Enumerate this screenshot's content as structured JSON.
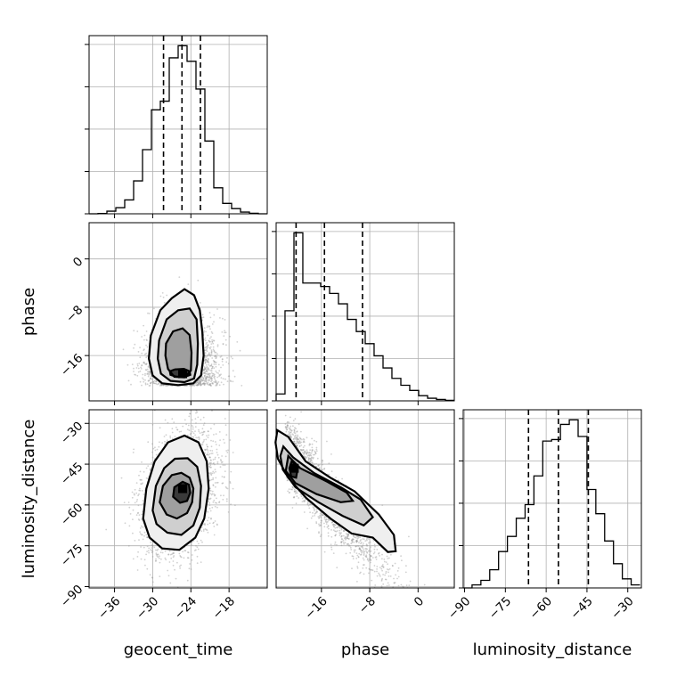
{
  "chart_data": {
    "type": "corner",
    "parameters": [
      "geocent_time",
      "phase",
      "luminosity_distance"
    ],
    "ranges": {
      "geocent_time": [
        -40,
        -12
      ],
      "phase": [
        -23.5,
        6
      ],
      "luminosity_distance": [
        -90.5,
        -25
      ]
    },
    "ticks": {
      "geocent_time": [
        "-36",
        "-30",
        "-24",
        "-18"
      ],
      "phase": [
        "-16",
        "-8",
        "0"
      ],
      "luminosity_distance": [
        "-90",
        "-75",
        "-60",
        "-45",
        "-30"
      ]
    },
    "tick_values": {
      "geocent_time": [
        -36,
        -30,
        -24,
        -18
      ],
      "phase": [
        -16,
        -8,
        0
      ],
      "luminosity_distance": [
        -90,
        -75,
        -60,
        -45,
        -30
      ]
    },
    "axis_labels": {
      "x": [
        "geocent_time",
        "phase",
        "luminosity_distance"
      ],
      "y": [
        "phase",
        "luminosity_distance"
      ]
    },
    "histograms": {
      "geocent_time": {
        "edges": [
          -40,
          -38.6,
          -37.2,
          -35.8,
          -34.4,
          -33,
          -31.6,
          -30.2,
          -28.8,
          -27.4,
          -26,
          -24.6,
          -23.2,
          -21.8,
          -20.4,
          -19,
          -17.6,
          -16.2,
          -14.8,
          -13.4,
          -12
        ],
        "counts": [
          0,
          0.2,
          1.5,
          3.5,
          8,
          19,
          37,
          60,
          65,
          90,
          97,
          88,
          72,
          42,
          15,
          6,
          3,
          1,
          0.3,
          0
        ],
        "quantiles": [
          -28.3,
          -25.4,
          -22.5
        ]
      },
      "phase": {
        "edges": [
          -23.5,
          -22.03,
          -20.55,
          -19.08,
          -17.6,
          -16.13,
          -14.65,
          -13.18,
          -11.7,
          -10.23,
          -8.75,
          -7.28,
          -5.8,
          -4.33,
          -2.85,
          -1.38,
          0.1,
          1.58,
          3.05,
          4.53,
          6
        ],
        "counts": [
          4,
          52,
          97,
          68,
          68,
          66,
          62,
          56,
          47,
          40,
          33,
          26,
          19,
          13,
          9,
          6,
          3,
          1.5,
          0.8,
          0.3
        ],
        "quantiles": [
          -20.2,
          -15.5,
          -9.2
        ]
      },
      "luminosity_distance": {
        "edges": [
          -90.5,
          -87.25,
          -84,
          -80.75,
          -77.5,
          -74.25,
          -71,
          -67.75,
          -64.5,
          -61.25,
          -58,
          -54.75,
          -51.5,
          -48.25,
          -45,
          -41.75,
          -38.5,
          -35.25,
          -32,
          -28.75,
          -25.5
        ],
        "counts": [
          0,
          2,
          5,
          12,
          24,
          34,
          46,
          55,
          74,
          97,
          98,
          108,
          111,
          100,
          65,
          49,
          31,
          16,
          6,
          2
        ],
        "quantiles": [
          -66.5,
          -55.5,
          -44.5
        ]
      }
    },
    "contours_2d": {
      "phase_vs_geocent_time": [
        [
          [
            -30.3,
            -12.7
          ],
          [
            -28.8,
            -8.5
          ],
          [
            -27,
            -6.5
          ],
          [
            -25,
            -5
          ],
          [
            -23.5,
            -6
          ],
          [
            -22.6,
            -8.5
          ],
          [
            -22.2,
            -12
          ],
          [
            -22,
            -16
          ],
          [
            -22.4,
            -19.3
          ],
          [
            -23.6,
            -20.6
          ],
          [
            -26,
            -20.9
          ],
          [
            -28.5,
            -20.6
          ],
          [
            -30,
            -19.3
          ],
          [
            -30.6,
            -16.5
          ]
        ],
        [
          [
            -29,
            -13.5
          ],
          [
            -27.8,
            -10
          ],
          [
            -26,
            -8.5
          ],
          [
            -24.2,
            -8.2
          ],
          [
            -23.1,
            -10
          ],
          [
            -22.9,
            -14
          ],
          [
            -23,
            -17.5
          ],
          [
            -23.5,
            -19.8
          ],
          [
            -25,
            -20.4
          ],
          [
            -27.2,
            -20.2
          ],
          [
            -28.7,
            -19
          ],
          [
            -29.2,
            -16.5
          ]
        ],
        [
          [
            -27.9,
            -14
          ],
          [
            -26.8,
            -12
          ],
          [
            -25.3,
            -11.5
          ],
          [
            -24.2,
            -12.6
          ],
          [
            -23.9,
            -15.5
          ],
          [
            -24,
            -18.5
          ],
          [
            -25,
            -19.6
          ],
          [
            -26.6,
            -19.5
          ],
          [
            -27.6,
            -18.2
          ],
          [
            -28,
            -16
          ]
        ],
        [
          [
            -27.3,
            -18.6
          ],
          [
            -26.5,
            -18.3
          ],
          [
            -25.1,
            -18.2
          ],
          [
            -24.2,
            -18.6
          ],
          [
            -24.1,
            -19.2
          ],
          [
            -24.9,
            -19.5
          ],
          [
            -26.3,
            -19.5
          ],
          [
            -27.2,
            -19.2
          ]
        ]
      ],
      "luminosity_distance_vs_geocent_time": [
        [
          [
            -31.5,
            -65
          ],
          [
            -31,
            -54
          ],
          [
            -29.7,
            -44
          ],
          [
            -27.6,
            -37
          ],
          [
            -25,
            -34.5
          ],
          [
            -22.8,
            -37
          ],
          [
            -21.5,
            -44
          ],
          [
            -21.2,
            -54
          ],
          [
            -21.9,
            -65
          ],
          [
            -23.3,
            -72
          ],
          [
            -25.8,
            -76.5
          ],
          [
            -28.5,
            -76
          ],
          [
            -30.5,
            -72
          ]
        ],
        [
          [
            -30,
            -62
          ],
          [
            -29.5,
            -53
          ],
          [
            -28.2,
            -46.5
          ],
          [
            -26.5,
            -43
          ],
          [
            -24.5,
            -42.8
          ],
          [
            -23,
            -46
          ],
          [
            -22.4,
            -53
          ],
          [
            -22.6,
            -61
          ],
          [
            -23.6,
            -67.5
          ],
          [
            -25.5,
            -71
          ],
          [
            -27.7,
            -70.2
          ],
          [
            -29.4,
            -67
          ]
        ],
        [
          [
            -28.9,
            -59
          ],
          [
            -28.4,
            -53
          ],
          [
            -27,
            -49
          ],
          [
            -25.5,
            -48.2
          ],
          [
            -24.2,
            -50
          ],
          [
            -23.6,
            -54
          ],
          [
            -23.8,
            -59
          ],
          [
            -24.6,
            -63
          ],
          [
            -26.2,
            -65
          ],
          [
            -27.8,
            -63.5
          ]
        ],
        [
          [
            -26.8,
            -57
          ],
          [
            -26.6,
            -53.5
          ],
          [
            -25.3,
            -51.5
          ],
          [
            -24.3,
            -52.5
          ],
          [
            -24.1,
            -55.5
          ],
          [
            -24.6,
            -58.5
          ],
          [
            -25.7,
            -59.2
          ]
        ]
      ],
      "luminosity_distance_vs_phase": [
        [
          [
            -23.3,
            -32.5
          ],
          [
            -21.5,
            -35
          ],
          [
            -18.6,
            -44
          ],
          [
            -14.5,
            -50
          ],
          [
            -10.5,
            -55
          ],
          [
            -6.5,
            -63.5
          ],
          [
            -4,
            -71
          ],
          [
            -3.7,
            -77
          ],
          [
            -5,
            -77.3
          ],
          [
            -7.5,
            -72
          ],
          [
            -11,
            -70.5
          ],
          [
            -14.5,
            -65
          ],
          [
            -18.5,
            -57.5
          ],
          [
            -21.5,
            -50
          ],
          [
            -23.2,
            -43
          ],
          [
            -23.6,
            -37
          ]
        ],
        [
          [
            -22.3,
            -38.5
          ],
          [
            -20.7,
            -42.5
          ],
          [
            -17.2,
            -48.3
          ],
          [
            -12.8,
            -53.5
          ],
          [
            -9.5,
            -58
          ],
          [
            -7.5,
            -64.5
          ],
          [
            -9,
            -67.5
          ],
          [
            -12.5,
            -64
          ],
          [
            -16.5,
            -59
          ],
          [
            -20.3,
            -53.5
          ],
          [
            -22.4,
            -47
          ],
          [
            -22.8,
            -42
          ]
        ],
        [
          [
            -21.5,
            -42
          ],
          [
            -19.5,
            -46.5
          ],
          [
            -15,
            -51.5
          ],
          [
            -11.8,
            -55.5
          ],
          [
            -10.8,
            -58.5
          ],
          [
            -12.8,
            -59
          ],
          [
            -16.8,
            -56
          ],
          [
            -20.3,
            -52
          ],
          [
            -21.9,
            -47.5
          ]
        ],
        [
          [
            -20.9,
            -43.8
          ],
          [
            -19.9,
            -46.2
          ],
          [
            -20.2,
            -50
          ],
          [
            -21,
            -49.5
          ],
          [
            -21.3,
            -46.5
          ]
        ]
      ]
    },
    "grid": true,
    "legend": "none"
  }
}
